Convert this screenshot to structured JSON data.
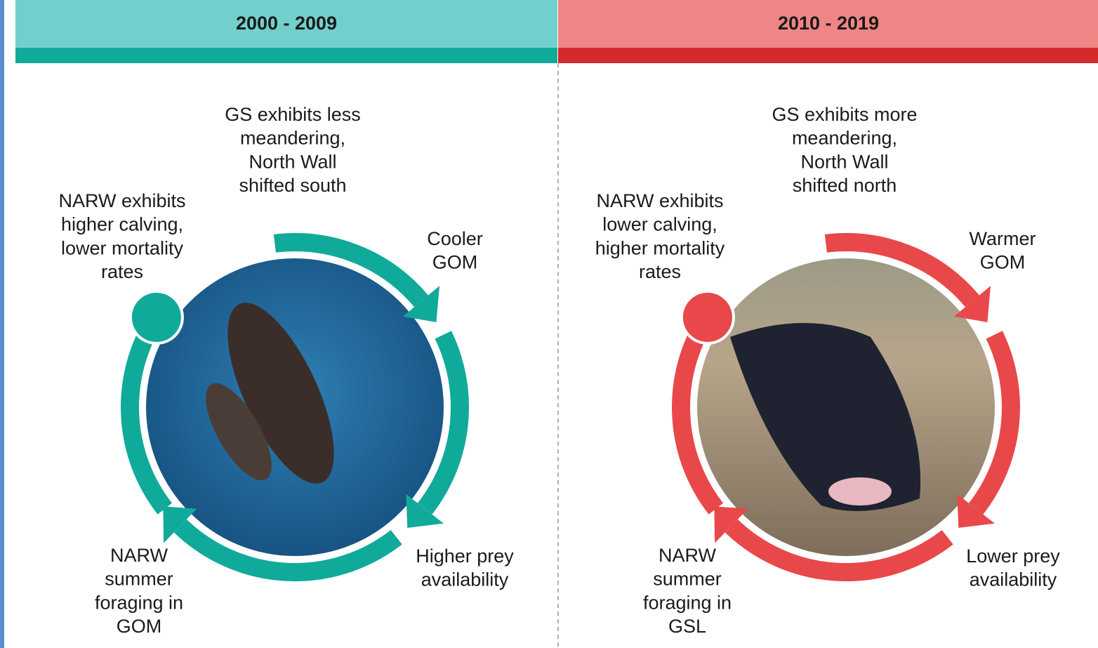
{
  "panels": [
    {
      "period": "2000 - 2009",
      "top": [
        "GS exhibits less",
        "meandering,",
        "North Wall",
        "shifted south"
      ],
      "left": [
        "NARW exhibits",
        "higher calving,",
        "lower mortality",
        "rates"
      ],
      "right": [
        "Cooler",
        "GOM"
      ],
      "bottom_right": [
        "Higher prey",
        "availability"
      ],
      "bottom_left": [
        "NARW",
        "summer",
        "foraging in",
        "GOM"
      ]
    },
    {
      "period": "2010 - 2019",
      "top": [
        "GS exhibits more",
        "meandering,",
        "North Wall",
        "shifted north"
      ],
      "left": [
        "NARW exhibits",
        "lower calving,",
        "higher mortality",
        "rates"
      ],
      "right": [
        "Warmer",
        "GOM"
      ],
      "bottom_right": [
        "Lower prey",
        "availability"
      ],
      "bottom_left": [
        "NARW",
        "summer",
        "foraging in",
        "GSL"
      ]
    }
  ]
}
